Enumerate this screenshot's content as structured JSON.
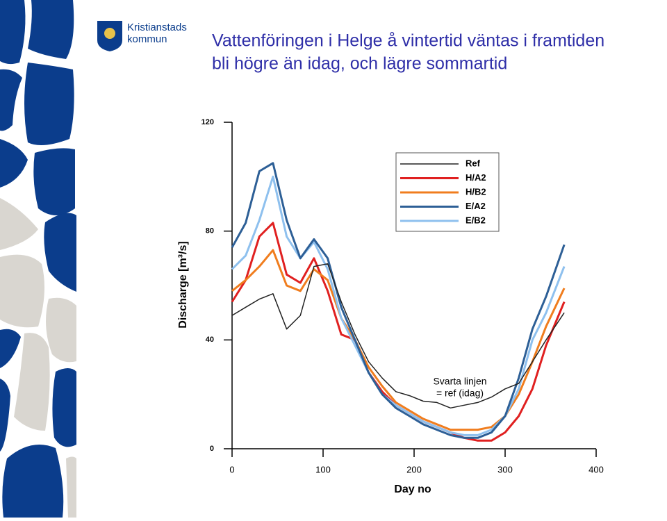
{
  "header": {
    "logo": [
      "Kristianstads",
      "kommun"
    ],
    "title": [
      "Vattenföringen i Helge å vintertid väntas i framtiden",
      "bli högre än idag, och lägre sommartid"
    ]
  },
  "chart_data": {
    "type": "line",
    "x_label": "Day no",
    "y_label": "Discharge [m³/s]",
    "annotations": [
      "Svarta linjen",
      "= ref (idag)"
    ],
    "x": [
      0,
      15,
      30,
      45,
      60,
      75,
      90,
      105,
      120,
      135,
      150,
      165,
      180,
      195,
      210,
      225,
      240,
      255,
      270,
      285,
      300,
      315,
      330,
      345,
      365
    ],
    "series": [
      {
        "name": "Ref",
        "color": "#222222",
        "values": [
          49,
          52,
          55,
          57,
          44,
          49,
          67,
          68,
          54,
          42,
          32,
          26,
          21,
          19.5,
          17.5,
          17,
          15,
          16,
          17,
          19,
          22,
          24,
          32,
          40,
          50
        ]
      },
      {
        "name": "H/A2",
        "color": "#e02020",
        "values": [
          54,
          62,
          78,
          83,
          64,
          61,
          70,
          58,
          42,
          40,
          28,
          21,
          16,
          13,
          10,
          8,
          6,
          4,
          3,
          3,
          6,
          12,
          22,
          38,
          54
        ]
      },
      {
        "name": "H/B2",
        "color": "#f07d1e",
        "values": [
          58,
          62,
          67,
          73,
          60,
          58,
          66,
          62,
          48,
          40,
          30,
          23,
          17,
          14,
          11,
          9,
          7,
          7,
          7,
          8,
          12,
          20,
          32,
          45,
          59
        ]
      },
      {
        "name": "E/A2",
        "color": "#2d5f96",
        "values": [
          74,
          83,
          102,
          105,
          84,
          70,
          77,
          70,
          52,
          40,
          28,
          20,
          15,
          12,
          9,
          7,
          5,
          4,
          4,
          6,
          12,
          26,
          44,
          56,
          75
        ]
      },
      {
        "name": "E/B2",
        "color": "#8ec0ee",
        "values": [
          66,
          71,
          84,
          100,
          78,
          70,
          76,
          66,
          48,
          38,
          28,
          20,
          16,
          13,
          10,
          8,
          6,
          5,
          5,
          7,
          12,
          22,
          40,
          50,
          67
        ]
      }
    ],
    "xlim": [
      0,
      400
    ],
    "xticks": [
      0,
      100,
      200,
      300,
      400
    ],
    "ylim": [
      0,
      120
    ],
    "yticks": [
      0,
      40,
      80,
      120
    ]
  }
}
